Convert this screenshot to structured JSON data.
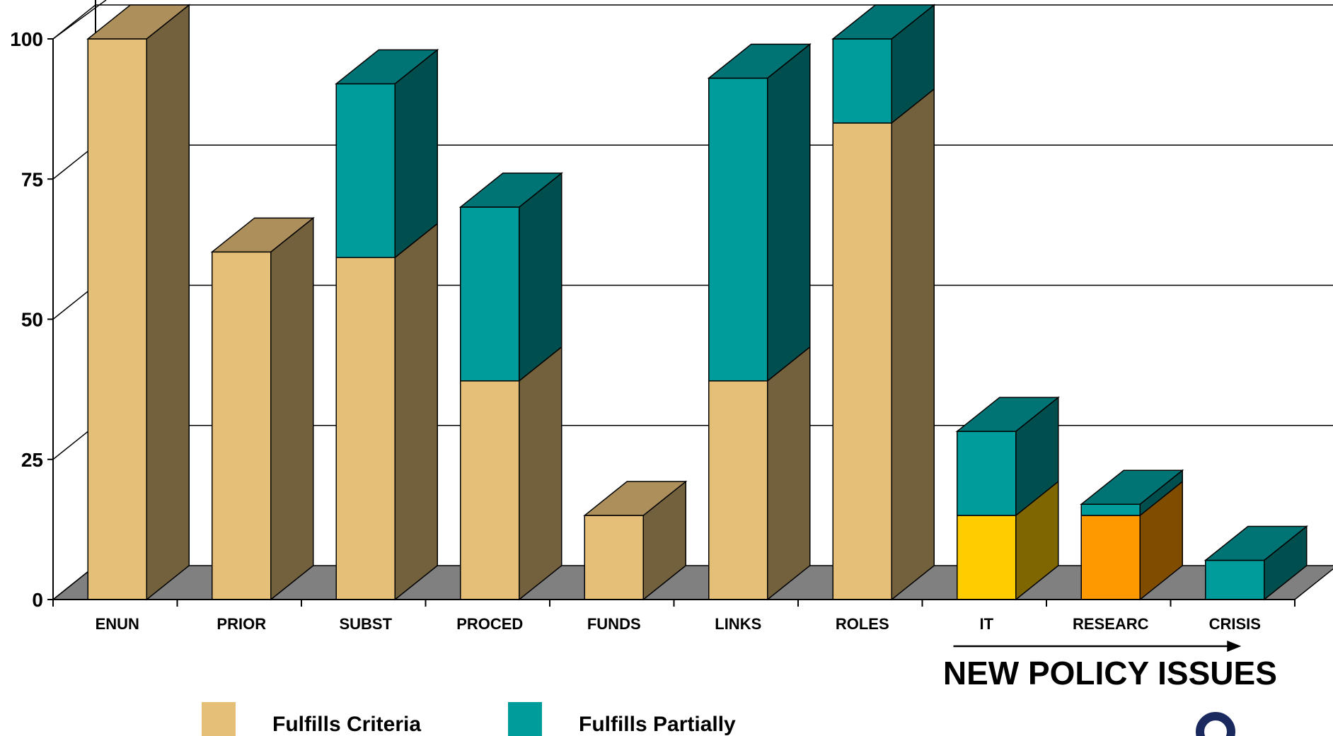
{
  "chart_data": {
    "type": "bar",
    "stacked": true,
    "style": "3d",
    "categories": [
      "ENUN",
      "PRIOR",
      "SUBST",
      "PROCED",
      "FUNDS",
      "LINKS",
      "ROLES",
      "IT",
      "RESEARC",
      "CRISIS"
    ],
    "series": [
      {
        "name": "Fulfills Criteria",
        "values": [
          100,
          62,
          61,
          39,
          15,
          39,
          85,
          15,
          15,
          0
        ],
        "color": "#e5bf78"
      },
      {
        "name": "Fulfills Partially",
        "values": [
          0,
          0,
          31,
          31,
          0,
          54,
          15,
          15,
          2,
          7
        ],
        "color": "#009b9b"
      }
    ],
    "bar_color_overrides": [
      {
        "category": "IT",
        "series": "Fulfills Criteria",
        "color": "#ffcc00"
      },
      {
        "category": "RESEARC",
        "series": "Fulfills Criteria",
        "color": "#ff9900"
      }
    ],
    "yticks": [
      "0",
      "25",
      "50",
      "75",
      "100"
    ],
    "ylim": [
      0,
      100
    ],
    "grid": true,
    "legend_position": "bottom-left",
    "annotation": {
      "text": "NEW POLICY ISSUES",
      "applies_to": [
        "IT",
        "RESEARC",
        "CRISIS"
      ]
    }
  }
}
